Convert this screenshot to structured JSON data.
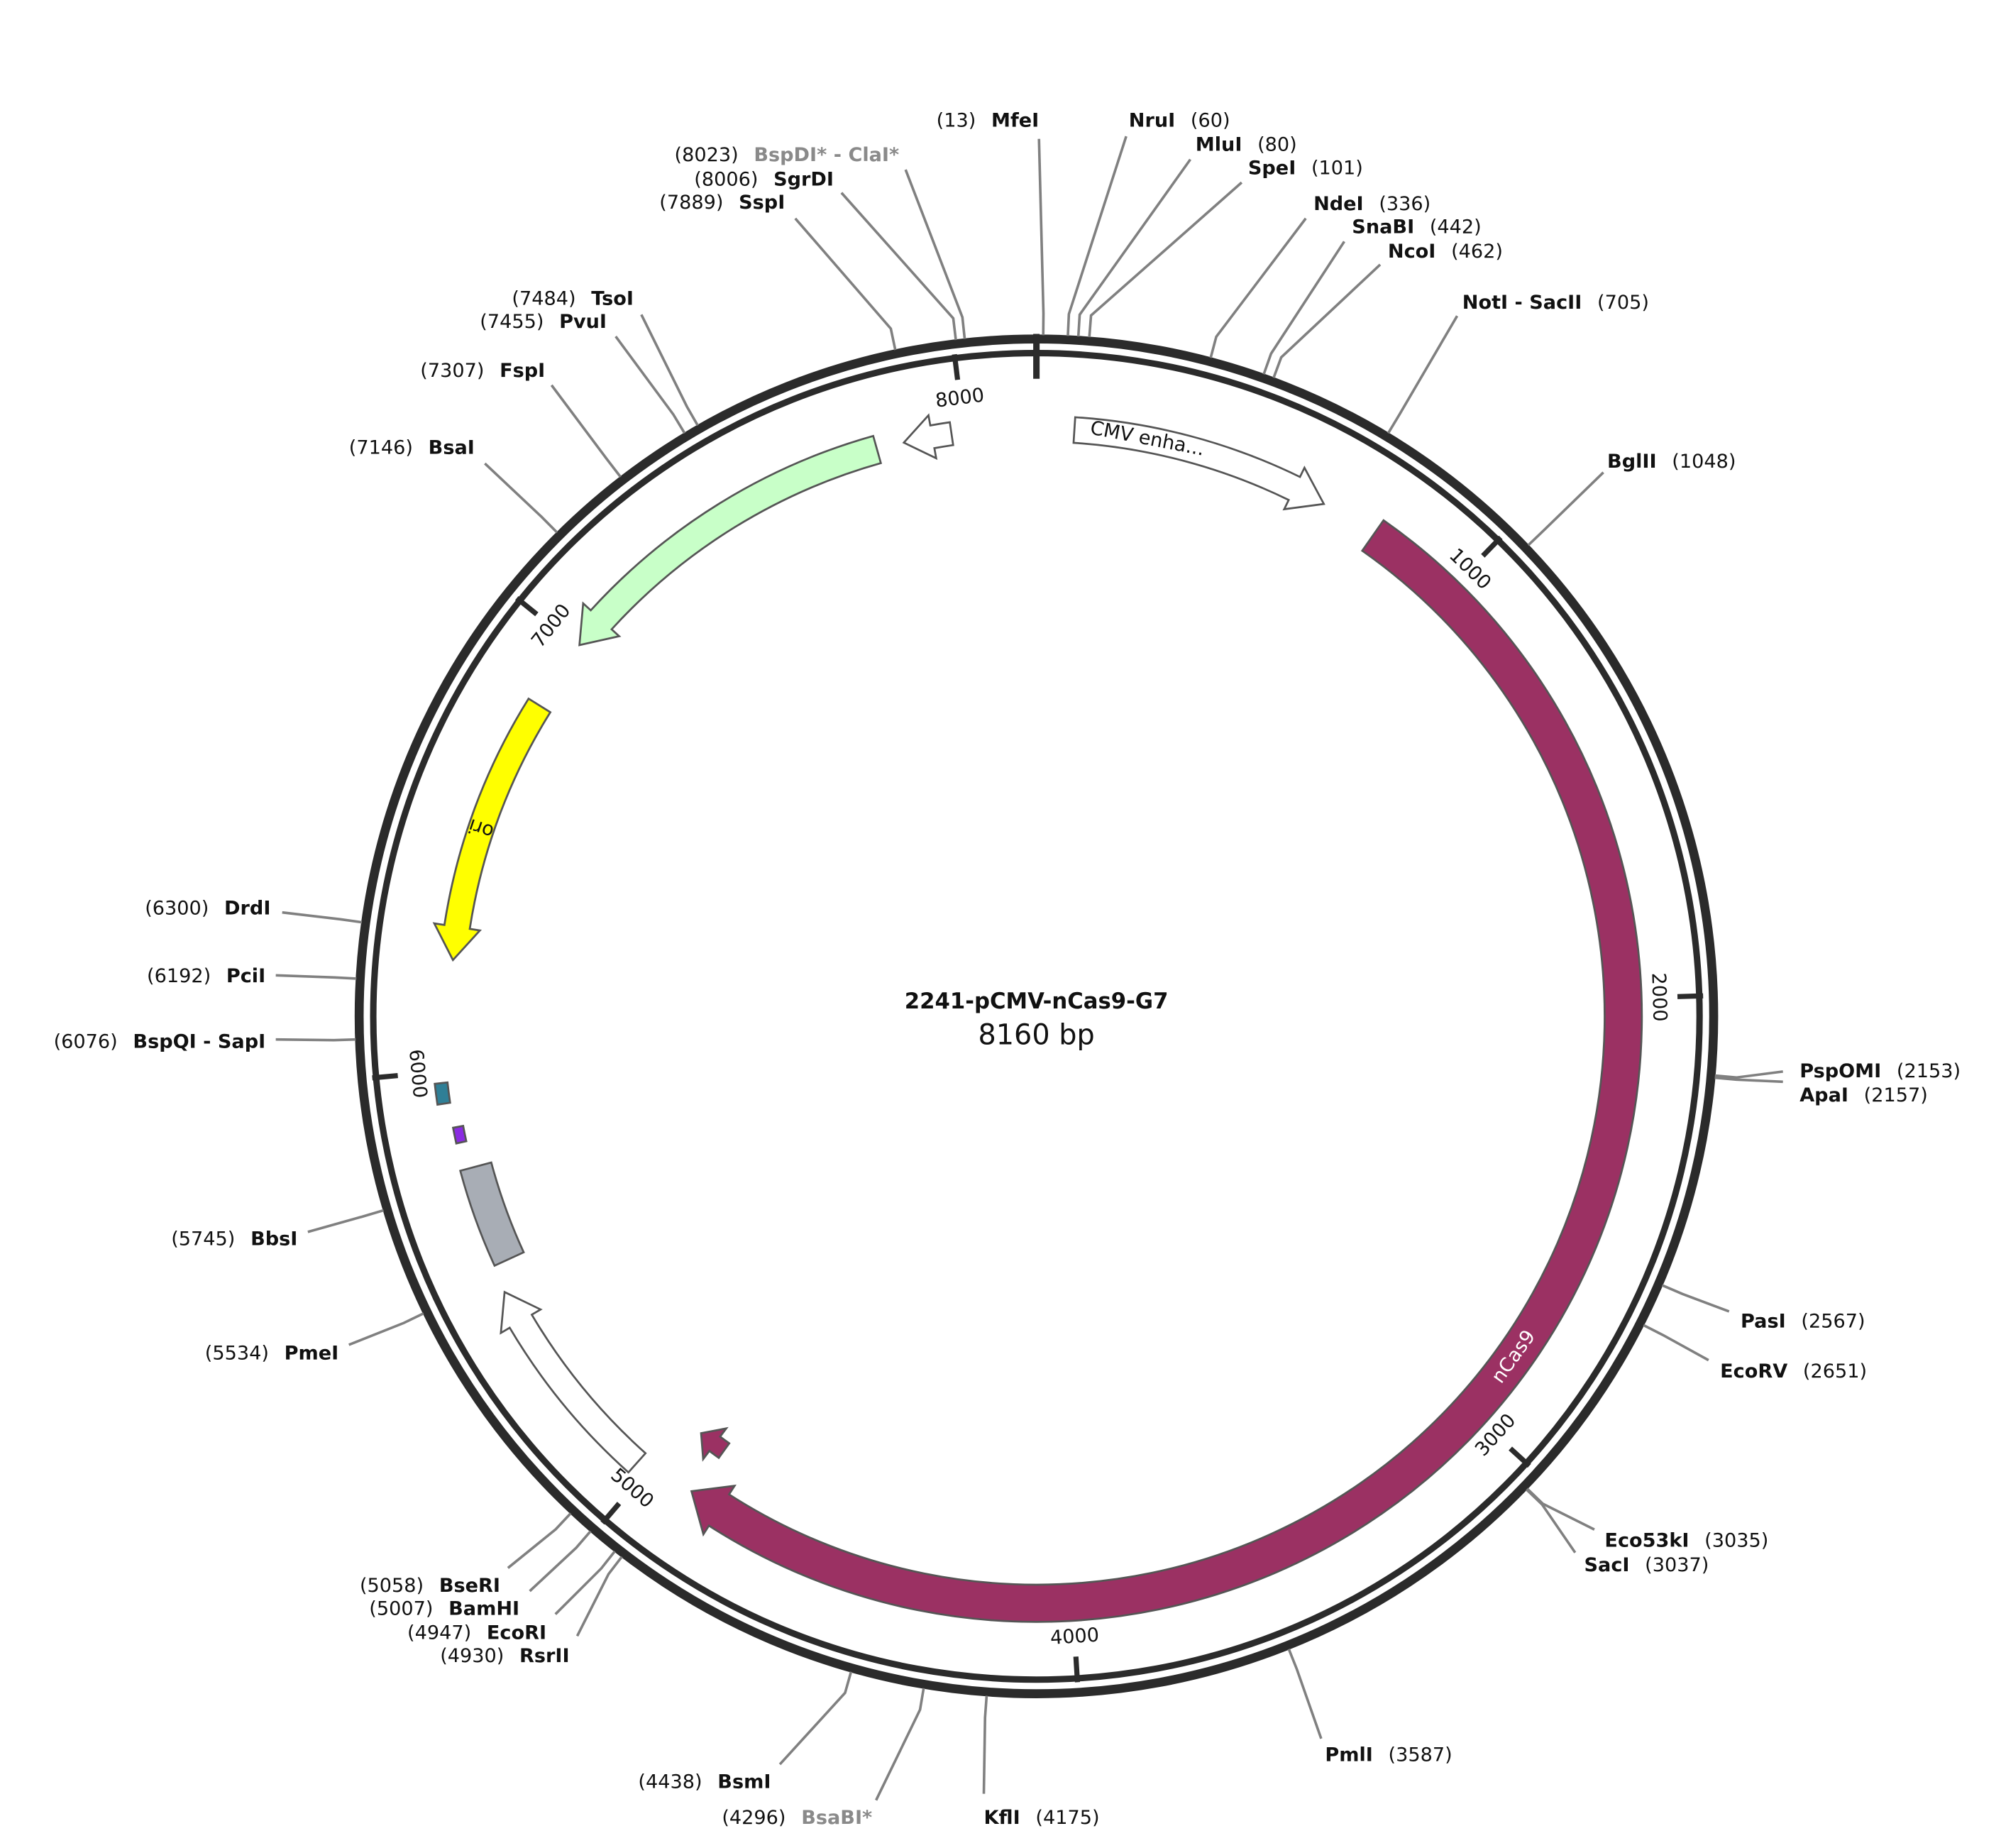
{
  "map": {
    "title": "2241-pCMV-nCas9-G7",
    "length": {
      "value": 8160,
      "label": "8160 bp"
    },
    "ticks": [
      1000,
      2000,
      3000,
      4000,
      5000,
      6000,
      7000,
      8000
    ],
    "ring_color": "#2b2b2b",
    "leader_color": "#808080",
    "features": [
      {
        "name": "nCas9",
        "start": 793,
        "end": 4896,
        "direction": "cw",
        "color": "#9b3163",
        "text_color": "#ffffff"
      },
      {
        "name": "CMV enha...",
        "start": 84,
        "end": 664,
        "direction": "cw",
        "color": "#ffffff",
        "text_color": "#111111"
      },
      {
        "start": 7804,
        "end": 7006,
        "direction": "ccw",
        "color": "#c8ffc8"
      },
      {
        "start": 7972,
        "end": 7865,
        "direction": "ccw",
        "color": "#ffffff"
      },
      {
        "name": "ori",
        "start": 6846,
        "end": 6245,
        "direction": "ccw",
        "color": "#ffff00",
        "text_color": "#111111"
      },
      {
        "start": 5780,
        "end": 5560,
        "direction": "none",
        "color": "#a8adb5"
      },
      {
        "start": 5028,
        "end": 5499,
        "direction": "cw",
        "color": "#ffffff"
      },
      {
        "start": 4890,
        "end": 4960,
        "direction": "cw",
        "color": "#9b3163"
      },
      {
        "start": 5930,
        "end": 5975,
        "direction": "none",
        "color": "#2f7f96"
      },
      {
        "start": 5840,
        "end": 5875,
        "direction": "none",
        "color": "#8a2be2"
      }
    ],
    "enzymes": [
      {
        "name": "MfeI",
        "position": {
          "value": 13,
          "label": "(13)"
        }
      },
      {
        "name": "NruI",
        "position": {
          "value": 60,
          "label": "(60)"
        }
      },
      {
        "name": "MluI",
        "position": {
          "value": 80,
          "label": "(80)"
        }
      },
      {
        "name": "SpeI",
        "position": {
          "value": 101,
          "label": "(101)"
        }
      },
      {
        "name": "NdeI",
        "position": {
          "value": 336,
          "label": "(336)"
        }
      },
      {
        "name": "SnaBI",
        "position": {
          "value": 442,
          "label": "(442)"
        }
      },
      {
        "name": "NcoI",
        "position": {
          "value": 462,
          "label": "(462)"
        }
      },
      {
        "name": "NotI - SacII",
        "position": {
          "value": 705,
          "label": "(705)"
        }
      },
      {
        "name": "BglII",
        "position": {
          "value": 1048,
          "label": "(1048)"
        }
      },
      {
        "name": "PspOMI",
        "position": {
          "value": 2153,
          "label": "(2153)"
        }
      },
      {
        "name": "ApaI",
        "position": {
          "value": 2157,
          "label": "(2157)"
        }
      },
      {
        "name": "PasI",
        "position": {
          "value": 2567,
          "label": "(2567)"
        }
      },
      {
        "name": "EcoRV",
        "position": {
          "value": 2651,
          "label": "(2651)"
        }
      },
      {
        "name": "Eco53kI",
        "position": {
          "value": 3035,
          "label": "(3035)"
        }
      },
      {
        "name": "SacI",
        "position": {
          "value": 3037,
          "label": "(3037)"
        }
      },
      {
        "name": "PmlI",
        "position": {
          "value": 3587,
          "label": "(3587)"
        }
      },
      {
        "name": "KflI",
        "position": {
          "value": 4175,
          "label": "(4175)"
        }
      },
      {
        "name": "BsaBI*",
        "position": {
          "value": 4296,
          "label": "(4296)"
        },
        "dim": true
      },
      {
        "name": "BsmI",
        "position": {
          "value": 4438,
          "label": "(4438)"
        }
      },
      {
        "name": "RsrII",
        "position": {
          "value": 4930,
          "label": "(4930)"
        }
      },
      {
        "name": "EcoRI",
        "position": {
          "value": 4947,
          "label": "(4947)"
        }
      },
      {
        "name": "BamHI",
        "position": {
          "value": 5007,
          "label": "(5007)"
        }
      },
      {
        "name": "BseRI",
        "position": {
          "value": 5058,
          "label": "(5058)"
        }
      },
      {
        "name": "PmeI",
        "position": {
          "value": 5534,
          "label": "(5534)"
        }
      },
      {
        "name": "BbsI",
        "position": {
          "value": 5745,
          "label": "(5745)"
        }
      },
      {
        "name": "BspQI - SapI",
        "position": {
          "value": 6076,
          "label": "(6076)"
        }
      },
      {
        "name": "PciI",
        "position": {
          "value": 6192,
          "label": "(6192)"
        }
      },
      {
        "name": "DrdI",
        "position": {
          "value": 6300,
          "label": "(6300)"
        }
      },
      {
        "name": "BsaI",
        "position": {
          "value": 7146,
          "label": "(7146)"
        }
      },
      {
        "name": "FspI",
        "position": {
          "value": 7307,
          "label": "(7307)"
        }
      },
      {
        "name": "PvuI",
        "position": {
          "value": 7455,
          "label": "(7455)"
        }
      },
      {
        "name": "TsoI",
        "position": {
          "value": 7484,
          "label": "(7484)"
        }
      },
      {
        "name": "SspI",
        "position": {
          "value": 7889,
          "label": "(7889)"
        }
      },
      {
        "name": "SgrDI",
        "position": {
          "value": 8006,
          "label": "(8006)"
        }
      },
      {
        "name": "BspDI* - ClaI*",
        "position": {
          "value": 8023,
          "label": "(8023)"
        },
        "dim": true
      }
    ]
  }
}
